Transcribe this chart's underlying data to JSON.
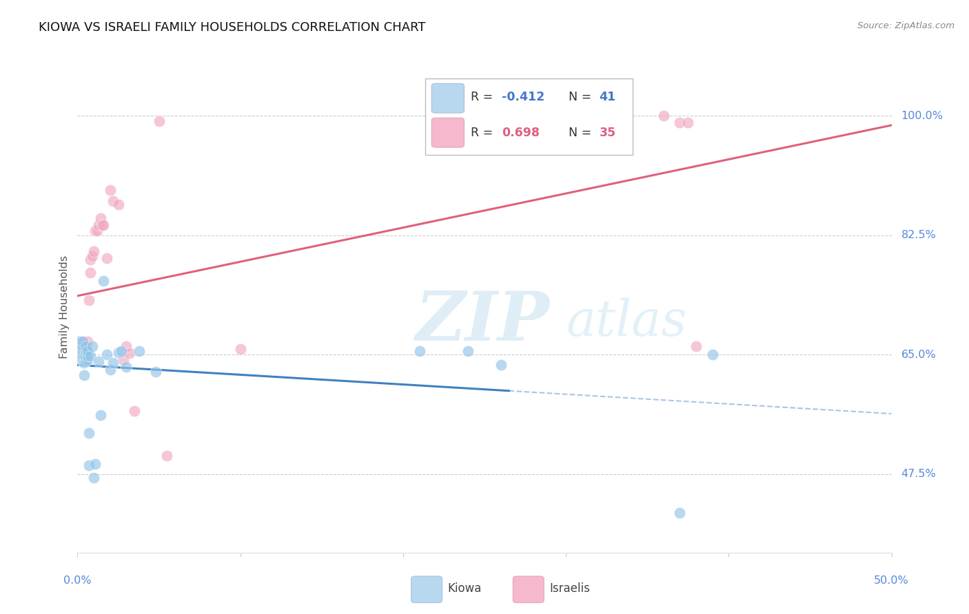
{
  "title": "KIOWA VS ISRAELI FAMILY HOUSEHOLDS CORRELATION CHART",
  "source": "Source: ZipAtlas.com",
  "ylabel": "Family Households",
  "ytick_vals": [
    0.475,
    0.65,
    0.825,
    1.0
  ],
  "ytick_labels": [
    "47.5%",
    "65.0%",
    "82.5%",
    "100.0%"
  ],
  "xlim": [
    0.0,
    0.5
  ],
  "ylim": [
    0.36,
    1.08
  ],
  "watermark": "ZIPatlas",
  "kiowa_color": "#92C4E8",
  "israeli_color": "#F0A8C0",
  "kiowa_line_color": "#4080C0",
  "israeli_line_color": "#E0607A",
  "kiowa_x": [
    0.001,
    0.001,
    0.002,
    0.002,
    0.003,
    0.003,
    0.003,
    0.003,
    0.003,
    0.004,
    0.004,
    0.004,
    0.005,
    0.005,
    0.005,
    0.005,
    0.006,
    0.006,
    0.006,
    0.007,
    0.007,
    0.008,
    0.009,
    0.01,
    0.011,
    0.013,
    0.014,
    0.016,
    0.018,
    0.02,
    0.022,
    0.025,
    0.027,
    0.03,
    0.038,
    0.048,
    0.21,
    0.24,
    0.26,
    0.37,
    0.39
  ],
  "kiowa_y": [
    0.66,
    0.67,
    0.648,
    0.658,
    0.64,
    0.648,
    0.655,
    0.662,
    0.67,
    0.62,
    0.638,
    0.648,
    0.64,
    0.648,
    0.655,
    0.662,
    0.642,
    0.648,
    0.655,
    0.488,
    0.535,
    0.648,
    0.662,
    0.47,
    0.49,
    0.64,
    0.562,
    0.758,
    0.65,
    0.628,
    0.638,
    0.653,
    0.655,
    0.632,
    0.655,
    0.625,
    0.655,
    0.655,
    0.635,
    0.418,
    0.65
  ],
  "israeli_x": [
    0.001,
    0.002,
    0.003,
    0.003,
    0.004,
    0.005,
    0.005,
    0.006,
    0.007,
    0.008,
    0.008,
    0.009,
    0.01,
    0.011,
    0.012,
    0.013,
    0.014,
    0.015,
    0.016,
    0.018,
    0.02,
    0.022,
    0.025,
    0.028,
    0.03,
    0.032,
    0.035,
    0.05,
    0.055,
    0.1,
    0.28,
    0.36,
    0.37,
    0.375,
    0.38
  ],
  "israeli_y": [
    0.648,
    0.655,
    0.662,
    0.67,
    0.648,
    0.655,
    0.662,
    0.67,
    0.73,
    0.77,
    0.79,
    0.795,
    0.802,
    0.832,
    0.832,
    0.84,
    0.85,
    0.84,
    0.84,
    0.792,
    0.892,
    0.875,
    0.87,
    0.642,
    0.662,
    0.652,
    0.568,
    0.992,
    0.502,
    0.658,
    1.0,
    1.0,
    0.99,
    0.99,
    0.662
  ],
  "legend_box_color_kiowa": "#B8D8F0",
  "legend_box_color_israeli": "#F5B8CC",
  "legend_text_color": "#333333",
  "legend_value_color": "#4477CC"
}
